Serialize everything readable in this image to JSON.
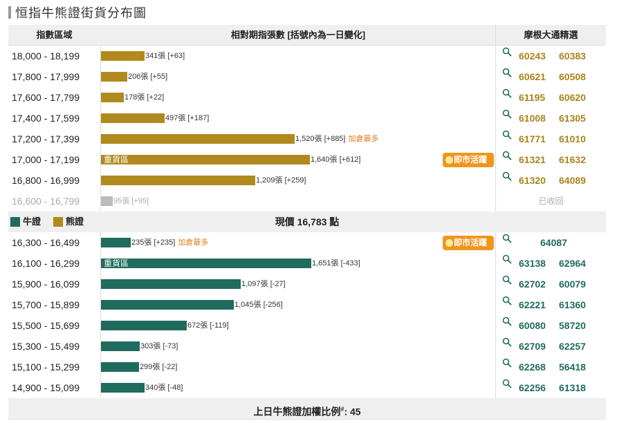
{
  "title": "恒指牛熊證街貨分布圖",
  "header": {
    "col_index": "指數區域",
    "col_qty": "相對期指張數 [括號內為一日變化]",
    "col_picks": "摩根大通精選"
  },
  "colors": {
    "bear": "#b08a1e",
    "bull": "#1f6b5e",
    "grey": "#bbbbbb",
    "badge": "#f0961e"
  },
  "bear_rows": [
    {
      "range": "18,000 - 18,199",
      "qty": "341張",
      "chg": "[+63]",
      "value": 341,
      "hot": "",
      "zone": "",
      "badge": "",
      "codes": [
        "60243",
        "60383"
      ]
    },
    {
      "range": "17,800 - 17,999",
      "qty": "206張",
      "chg": "[+55]",
      "value": 206,
      "hot": "",
      "zone": "",
      "badge": "",
      "codes": [
        "60621",
        "60508"
      ]
    },
    {
      "range": "17,600 - 17,799",
      "qty": "178張",
      "chg": "[+22]",
      "value": 178,
      "hot": "",
      "zone": "",
      "badge": "",
      "codes": [
        "61195",
        "60620"
      ]
    },
    {
      "range": "17,400 - 17,599",
      "qty": "497張",
      "chg": "[+187]",
      "value": 497,
      "hot": "",
      "zone": "",
      "badge": "",
      "codes": [
        "61008",
        "61305"
      ]
    },
    {
      "range": "17,200 - 17,399",
      "qty": "1,520張",
      "chg": "[+885]",
      "value": 1520,
      "hot": "加倉最多",
      "zone": "",
      "badge": "",
      "codes": [
        "61771",
        "61010"
      ]
    },
    {
      "range": "17,000 - 17,199",
      "qty": "1,640張",
      "chg": "[+612]",
      "value": 1640,
      "hot": "",
      "zone": "重貨區",
      "badge": "即市活躍",
      "codes": [
        "61321",
        "61632"
      ]
    },
    {
      "range": "16,800 - 16,999",
      "qty": "1,209張",
      "chg": "[+259]",
      "value": 1209,
      "hot": "",
      "zone": "",
      "badge": "",
      "codes": [
        "61320",
        "64089"
      ]
    },
    {
      "range": "16,600 - 16,799",
      "qty": "95張",
      "chg": "[+95]",
      "value": 95,
      "hot": "",
      "zone": "",
      "badge": "",
      "codes": [],
      "recalled": "已收回"
    }
  ],
  "legend": {
    "bull": "牛證",
    "bear": "熊證"
  },
  "price": {
    "label": "現價",
    "value": "16,783",
    "unit": "點"
  },
  "bull_rows": [
    {
      "range": "16,300 - 16,499",
      "qty": "235張",
      "chg": "[+235]",
      "value": 235,
      "hot": "加倉最多",
      "zone": "",
      "badge": "即市活躍",
      "codes": [
        "64087"
      ]
    },
    {
      "range": "16,100 - 16,299",
      "qty": "1,651張",
      "chg": "[-433]",
      "value": 1651,
      "hot": "",
      "zone": "重貨區",
      "badge": "",
      "codes": [
        "63138",
        "62964"
      ]
    },
    {
      "range": "15,900 - 16,099",
      "qty": "1,097張",
      "chg": "[-27]",
      "value": 1097,
      "hot": "",
      "zone": "",
      "badge": "",
      "codes": [
        "62702",
        "60079"
      ]
    },
    {
      "range": "15,700 - 15,899",
      "qty": "1,045張",
      "chg": "[-256]",
      "value": 1045,
      "hot": "",
      "zone": "",
      "badge": "",
      "codes": [
        "62221",
        "61360"
      ]
    },
    {
      "range": "15,500 - 15,699",
      "qty": "672張",
      "chg": "[-119]",
      "value": 672,
      "hot": "",
      "zone": "",
      "badge": "",
      "codes": [
        "60080",
        "58720"
      ]
    },
    {
      "range": "15,300 - 15,499",
      "qty": "303張",
      "chg": "[-73]",
      "value": 303,
      "hot": "",
      "zone": "",
      "badge": "",
      "codes": [
        "62709",
        "62257"
      ]
    },
    {
      "range": "15,100 - 15,299",
      "qty": "299張",
      "chg": "[-22]",
      "value": 299,
      "hot": "",
      "zone": "",
      "badge": "",
      "codes": [
        "62268",
        "56418"
      ]
    },
    {
      "range": "14,900 - 15,099",
      "qty": "340張",
      "chg": "[-48]",
      "value": 340,
      "hot": "",
      "zone": "",
      "badge": "",
      "codes": [
        "62256",
        "61318"
      ]
    }
  ],
  "footer": {
    "label": "上日牛熊證加權比例",
    "mark": "#",
    "sep": ": ",
    "value": "45"
  }
}
